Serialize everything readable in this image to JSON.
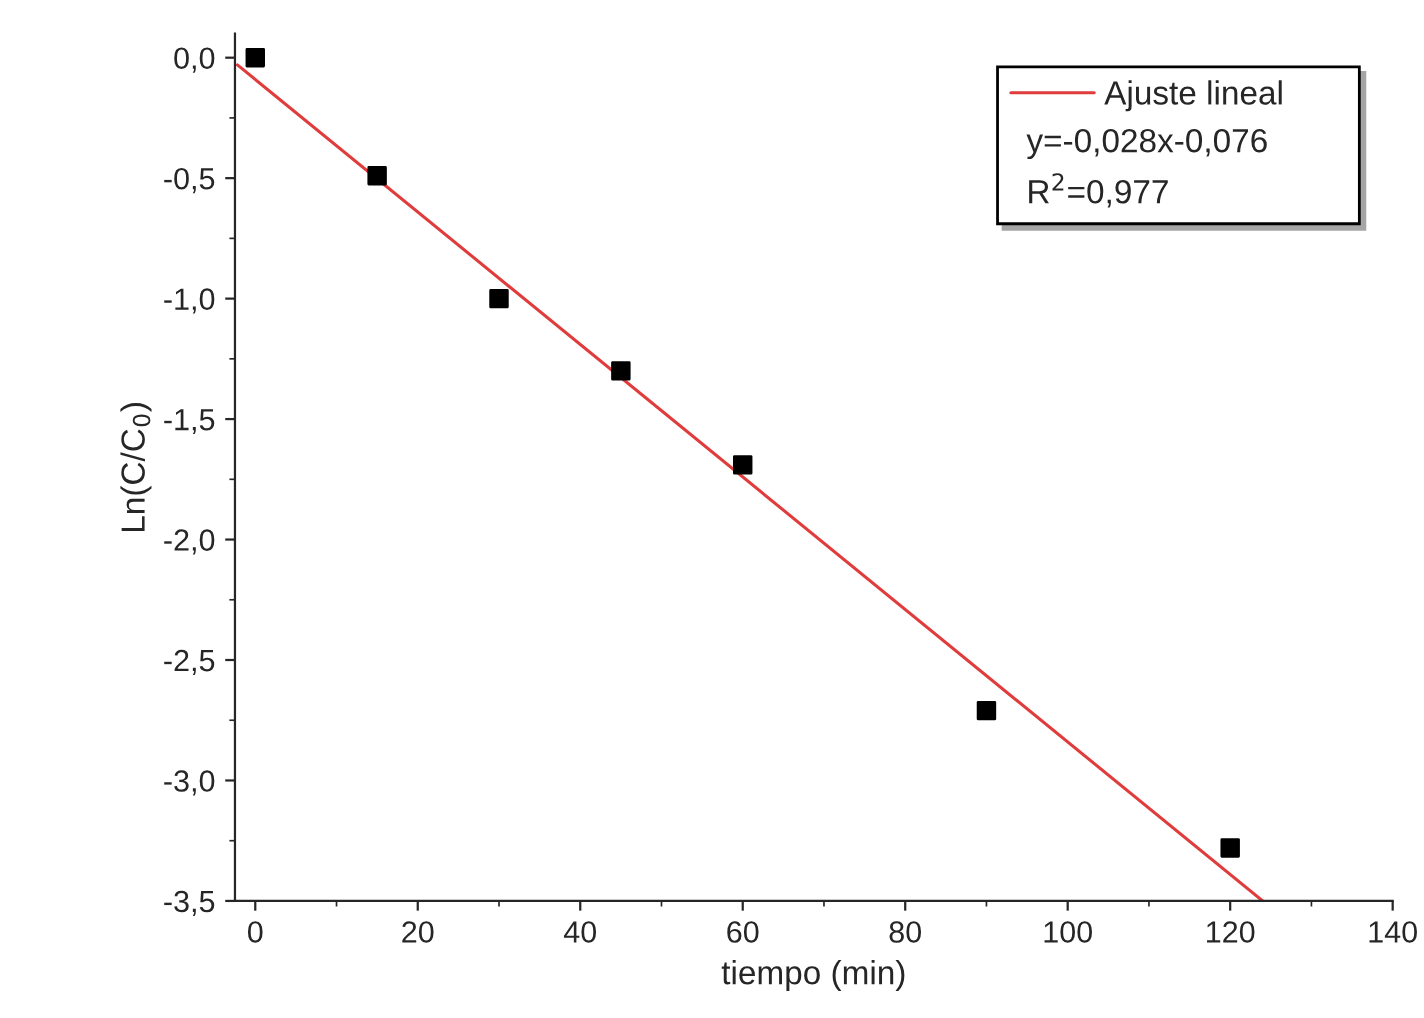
{
  "chart_data": {
    "type": "scatter",
    "xlabel": "tiempo (min)",
    "ylabel": "Ln(C/C$_{0}$)",
    "xlim": [
      -2.5,
      140
    ],
    "ylim": [
      -3.5,
      0.1
    ],
    "xticks": [
      0,
      20,
      40,
      60,
      80,
      100,
      120,
      140
    ],
    "yticks": [
      {
        "value": 0,
        "label": "0,0"
      },
      {
        "value": -0.5,
        "label": "-0,5"
      },
      {
        "value": -1.0,
        "label": "-1,0"
      },
      {
        "value": -1.5,
        "label": "-1,5"
      },
      {
        "value": -2.0,
        "label": "-2,0"
      },
      {
        "value": -2.5,
        "label": "-2,5"
      },
      {
        "value": -3.0,
        "label": "-3,0"
      },
      {
        "value": -3.5,
        "label": "-3,5"
      }
    ],
    "x": [
      0,
      15,
      30,
      45,
      60,
      90,
      120
    ],
    "series": [
      {
        "color": "#000000",
        "marker": "square",
        "values": [
          0.0,
          -0.49,
          -1.0,
          -1.3,
          -1.69,
          -2.71,
          -3.28
        ]
      },
      {
        "type": "line",
        "name": "Ajuste lineal",
        "color": "#e03c3c",
        "line_style": "solid",
        "x": [
          -2.2,
          124
        ],
        "values": [
          -0.03,
          -3.5
        ]
      }
    ],
    "annotations": [
      "y=-0,028x-0,076",
      "R$^{2}$=0,977"
    ],
    "legend": "top right",
    "grid": false
  }
}
